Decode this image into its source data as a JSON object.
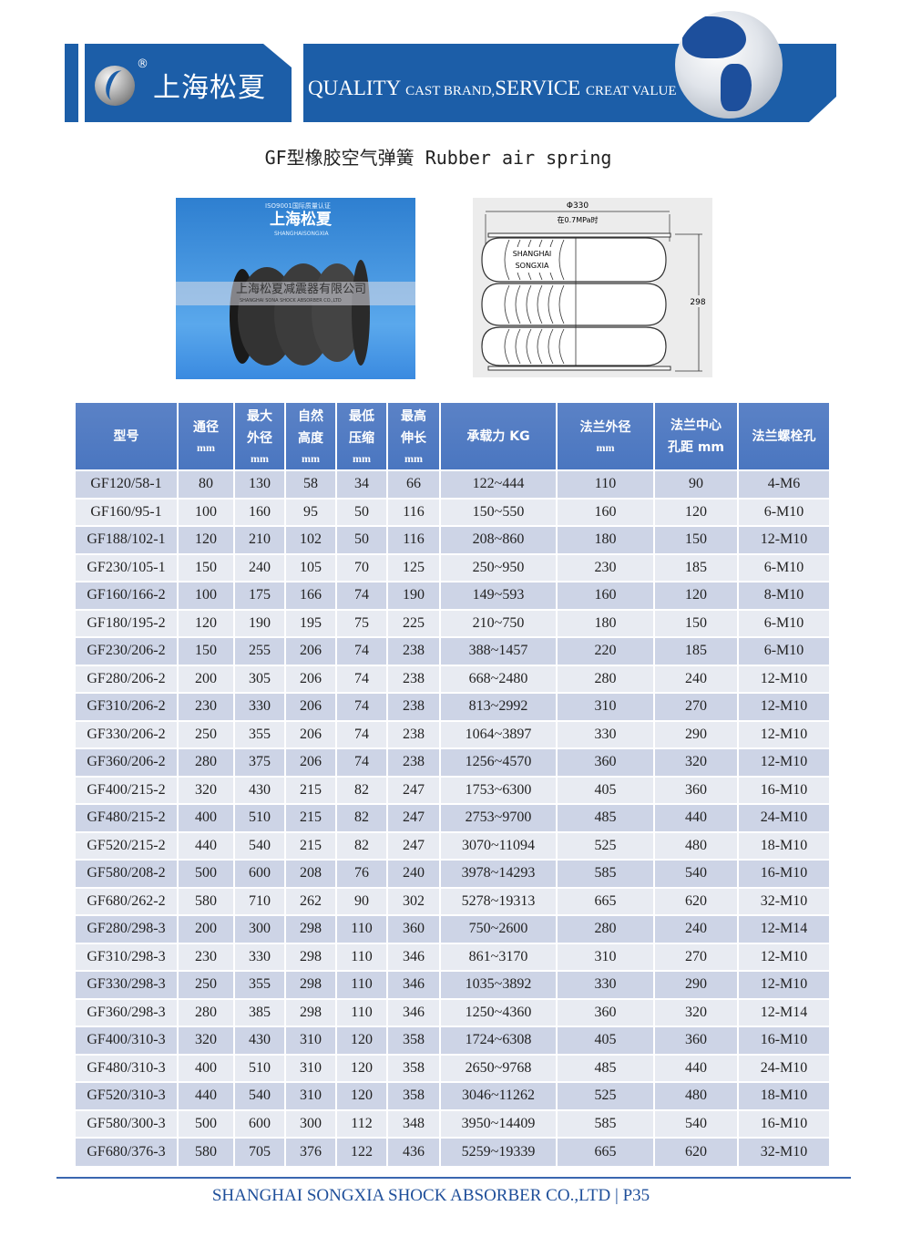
{
  "banner": {
    "brand_cn": "上海松夏",
    "registered": "®",
    "slogan_big1": "QUALITY",
    "slogan_small1": "CAST BRAND,",
    "slogan_big2": "SERVICE",
    "slogan_small2": "CREAT VALUE",
    "color": "#1c5ea8"
  },
  "title": "GF型橡胶空气弹簧 Rubber air spring",
  "photo": {
    "cert": "ISO9001国际质量认证",
    "brand": "上海松夏",
    "brand_en": "SHANGHAISONGXIA",
    "watermark_cn": "上海松夏减震器有限公司",
    "watermark_en": "SHANGHAI SONA SHOCK ABSORBER CO.,LTD"
  },
  "diagram": {
    "diameter": "Φ330",
    "pressure": "在0.7MPa时",
    "height": "298",
    "label1": "SHANGHAI",
    "label2": "SONGXIA"
  },
  "table": {
    "headers": [
      {
        "cn": "型号",
        "unit": ""
      },
      {
        "cn": "通径",
        "unit": "mm"
      },
      {
        "cn": "最大\n外径",
        "unit": "mm"
      },
      {
        "cn": "自然\n高度",
        "unit": "mm"
      },
      {
        "cn": "最低\n压缩",
        "unit": "mm"
      },
      {
        "cn": "最高\n伸长",
        "unit": "mm"
      },
      {
        "cn": "承载力 KG",
        "unit": ""
      },
      {
        "cn": "法兰外径",
        "unit": "mm"
      },
      {
        "cn": "法兰中心\n孔距 mm",
        "unit": ""
      },
      {
        "cn": "法兰螺栓孔",
        "unit": ""
      }
    ],
    "rows": [
      [
        "GF120/58-1",
        "80",
        "130",
        "58",
        "34",
        "66",
        "122~444",
        "110",
        "90",
        "4-M6"
      ],
      [
        "GF160/95-1",
        "100",
        "160",
        "95",
        "50",
        "116",
        "150~550",
        "160",
        "120",
        "6-M10"
      ],
      [
        "GF188/102-1",
        "120",
        "210",
        "102",
        "50",
        "116",
        "208~860",
        "180",
        "150",
        "12-M10"
      ],
      [
        "GF230/105-1",
        "150",
        "240",
        "105",
        "70",
        "125",
        "250~950",
        "230",
        "185",
        "6-M10"
      ],
      [
        "GF160/166-2",
        "100",
        "175",
        "166",
        "74",
        "190",
        "149~593",
        "160",
        "120",
        "8-M10"
      ],
      [
        "GF180/195-2",
        "120",
        "190",
        "195",
        "75",
        "225",
        "210~750",
        "180",
        "150",
        "6-M10"
      ],
      [
        "GF230/206-2",
        "150",
        "255",
        "206",
        "74",
        "238",
        "388~1457",
        "220",
        "185",
        "6-M10"
      ],
      [
        "GF280/206-2",
        "200",
        "305",
        "206",
        "74",
        "238",
        "668~2480",
        "280",
        "240",
        "12-M10"
      ],
      [
        "GF310/206-2",
        "230",
        "330",
        "206",
        "74",
        "238",
        "813~2992",
        "310",
        "270",
        "12-M10"
      ],
      [
        "GF330/206-2",
        "250",
        "355",
        "206",
        "74",
        "238",
        "1064~3897",
        "330",
        "290",
        "12-M10"
      ],
      [
        "GF360/206-2",
        "280",
        "375",
        "206",
        "74",
        "238",
        "1256~4570",
        "360",
        "320",
        "12-M10"
      ],
      [
        "GF400/215-2",
        "320",
        "430",
        "215",
        "82",
        "247",
        "1753~6300",
        "405",
        "360",
        "16-M10"
      ],
      [
        "GF480/215-2",
        "400",
        "510",
        "215",
        "82",
        "247",
        "2753~9700",
        "485",
        "440",
        "24-M10"
      ],
      [
        "GF520/215-2",
        "440",
        "540",
        "215",
        "82",
        "247",
        "3070~11094",
        "525",
        "480",
        "18-M10"
      ],
      [
        "GF580/208-2",
        "500",
        "600",
        "208",
        "76",
        "240",
        "3978~14293",
        "585",
        "540",
        "16-M10"
      ],
      [
        "GF680/262-2",
        "580",
        "710",
        "262",
        "90",
        "302",
        "5278~19313",
        "665",
        "620",
        "32-M10"
      ],
      [
        "GF280/298-3",
        "200",
        "300",
        "298",
        "110",
        "360",
        "750~2600",
        "280",
        "240",
        "12-M14"
      ],
      [
        "GF310/298-3",
        "230",
        "330",
        "298",
        "110",
        "346",
        "861~3170",
        "310",
        "270",
        "12-M10"
      ],
      [
        "GF330/298-3",
        "250",
        "355",
        "298",
        "110",
        "346",
        "1035~3892",
        "330",
        "290",
        "12-M10"
      ],
      [
        "GF360/298-3",
        "280",
        "385",
        "298",
        "110",
        "346",
        "1250~4360",
        "360",
        "320",
        "12-M14"
      ],
      [
        "GF400/310-3",
        "320",
        "430",
        "310",
        "120",
        "358",
        "1724~6308",
        "405",
        "360",
        "16-M10"
      ],
      [
        "GF480/310-3",
        "400",
        "510",
        "310",
        "120",
        "358",
        "2650~9768",
        "485",
        "440",
        "24-M10"
      ],
      [
        "GF520/310-3",
        "440",
        "540",
        "310",
        "120",
        "358",
        "3046~11262",
        "525",
        "480",
        "18-M10"
      ],
      [
        "GF580/300-3",
        "500",
        "600",
        "300",
        "112",
        "348",
        "3950~14409",
        "585",
        "540",
        "16-M10"
      ],
      [
        "GF680/376-3",
        "580",
        "705",
        "376",
        "122",
        "436",
        "5259~19339",
        "665",
        "620",
        "32-M10"
      ]
    ]
  },
  "footer": {
    "company": "SHANGHAI SONGXIA SHOCK ABSORBER CO.,LTD",
    "separator": "|",
    "page": "P35"
  }
}
